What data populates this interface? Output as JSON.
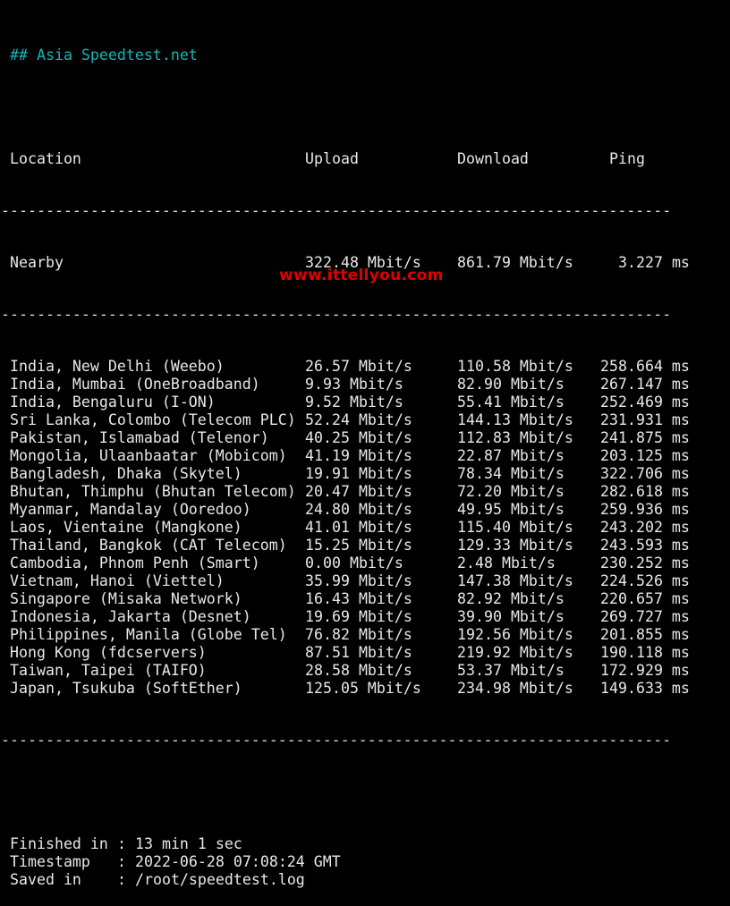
{
  "title": "## Asia Speedtest.net",
  "headers": {
    "location": "Location",
    "upload": "Upload",
    "download": "Download",
    "ping": "Ping"
  },
  "separator": "---------------------------------------------------------------------------",
  "nearby": {
    "location": "Nearby",
    "upload": "322.48 Mbit/s",
    "download": "861.79 Mbit/s",
    "ping": "3.227 ms"
  },
  "rows": [
    {
      "location": "India, New Delhi (Weebo)",
      "upload": "26.57 Mbit/s",
      "download": "110.58 Mbit/s",
      "ping": "258.664 ms"
    },
    {
      "location": "India, Mumbai (OneBroadband)",
      "upload": "9.93 Mbit/s",
      "download": "82.90 Mbit/s",
      "ping": "267.147 ms"
    },
    {
      "location": "India, Bengaluru (I-ON)",
      "upload": "9.52 Mbit/s",
      "download": "55.41 Mbit/s",
      "ping": "252.469 ms"
    },
    {
      "location": "Sri Lanka, Colombo (Telecom PLC)",
      "upload": "52.24 Mbit/s",
      "download": "144.13 Mbit/s",
      "ping": "231.931 ms"
    },
    {
      "location": "Pakistan, Islamabad (Telenor)",
      "upload": "40.25 Mbit/s",
      "download": "112.83 Mbit/s",
      "ping": "241.875 ms"
    },
    {
      "location": "Mongolia, Ulaanbaatar (Mobicom)",
      "upload": "41.19 Mbit/s",
      "download": "22.87 Mbit/s",
      "ping": "203.125 ms"
    },
    {
      "location": "Bangladesh, Dhaka (Skytel)",
      "upload": "19.91 Mbit/s",
      "download": "78.34 Mbit/s",
      "ping": "322.706 ms"
    },
    {
      "location": "Bhutan, Thimphu (Bhutan Telecom)",
      "upload": "20.47 Mbit/s",
      "download": "72.20 Mbit/s",
      "ping": "282.618 ms"
    },
    {
      "location": "Myanmar, Mandalay (Ooredoo)",
      "upload": "24.80 Mbit/s",
      "download": "49.95 Mbit/s",
      "ping": "259.936 ms"
    },
    {
      "location": "Laos, Vientaine (Mangkone)",
      "upload": "41.01 Mbit/s",
      "download": "115.40 Mbit/s",
      "ping": "243.202 ms"
    },
    {
      "location": "Thailand, Bangkok (CAT Telecom)",
      "upload": "15.25 Mbit/s",
      "download": "129.33 Mbit/s",
      "ping": "243.593 ms"
    },
    {
      "location": "Cambodia, Phnom Penh (Smart)",
      "upload": "0.00 Mbit/s",
      "download": "2.48 Mbit/s",
      "ping": "230.252 ms"
    },
    {
      "location": "Vietnam, Hanoi (Viettel)",
      "upload": "35.99 Mbit/s",
      "download": "147.38 Mbit/s",
      "ping": "224.526 ms"
    },
    {
      "location": "Singapore (Misaka Network)",
      "upload": "16.43 Mbit/s",
      "download": "82.92 Mbit/s",
      "ping": "220.657 ms"
    },
    {
      "location": "Indonesia, Jakarta (Desnet)",
      "upload": "19.69 Mbit/s",
      "download": "39.90 Mbit/s",
      "ping": "269.727 ms"
    },
    {
      "location": "Philippines, Manila (Globe Tel)",
      "upload": "76.82 Mbit/s",
      "download": "192.56 Mbit/s",
      "ping": "201.855 ms"
    },
    {
      "location": "Hong Kong (fdcservers)",
      "upload": "87.51 Mbit/s",
      "download": "219.92 Mbit/s",
      "ping": "190.118 ms"
    },
    {
      "location": "Taiwan, Taipei (TAIFO)",
      "upload": "28.58 Mbit/s",
      "download": "53.37 Mbit/s",
      "ping": "172.929 ms"
    },
    {
      "location": "Japan, Tsukuba (SoftEther)",
      "upload": "125.05 Mbit/s",
      "download": "234.98 Mbit/s",
      "ping": "149.633 ms"
    }
  ],
  "summary": [
    {
      "label": "Finished in",
      "value": "13 min 1 sec"
    },
    {
      "label": "Timestamp",
      "value": "2022-06-28 07:08:24 GMT"
    },
    {
      "label": "Saved in",
      "value": "/root/speedtest.log"
    }
  ],
  "watermark": "www.ittellyou.com",
  "colors": {
    "background": "#000000",
    "text": "#e8e8e8",
    "title": "#17b5b5",
    "watermark": "#e00000"
  }
}
